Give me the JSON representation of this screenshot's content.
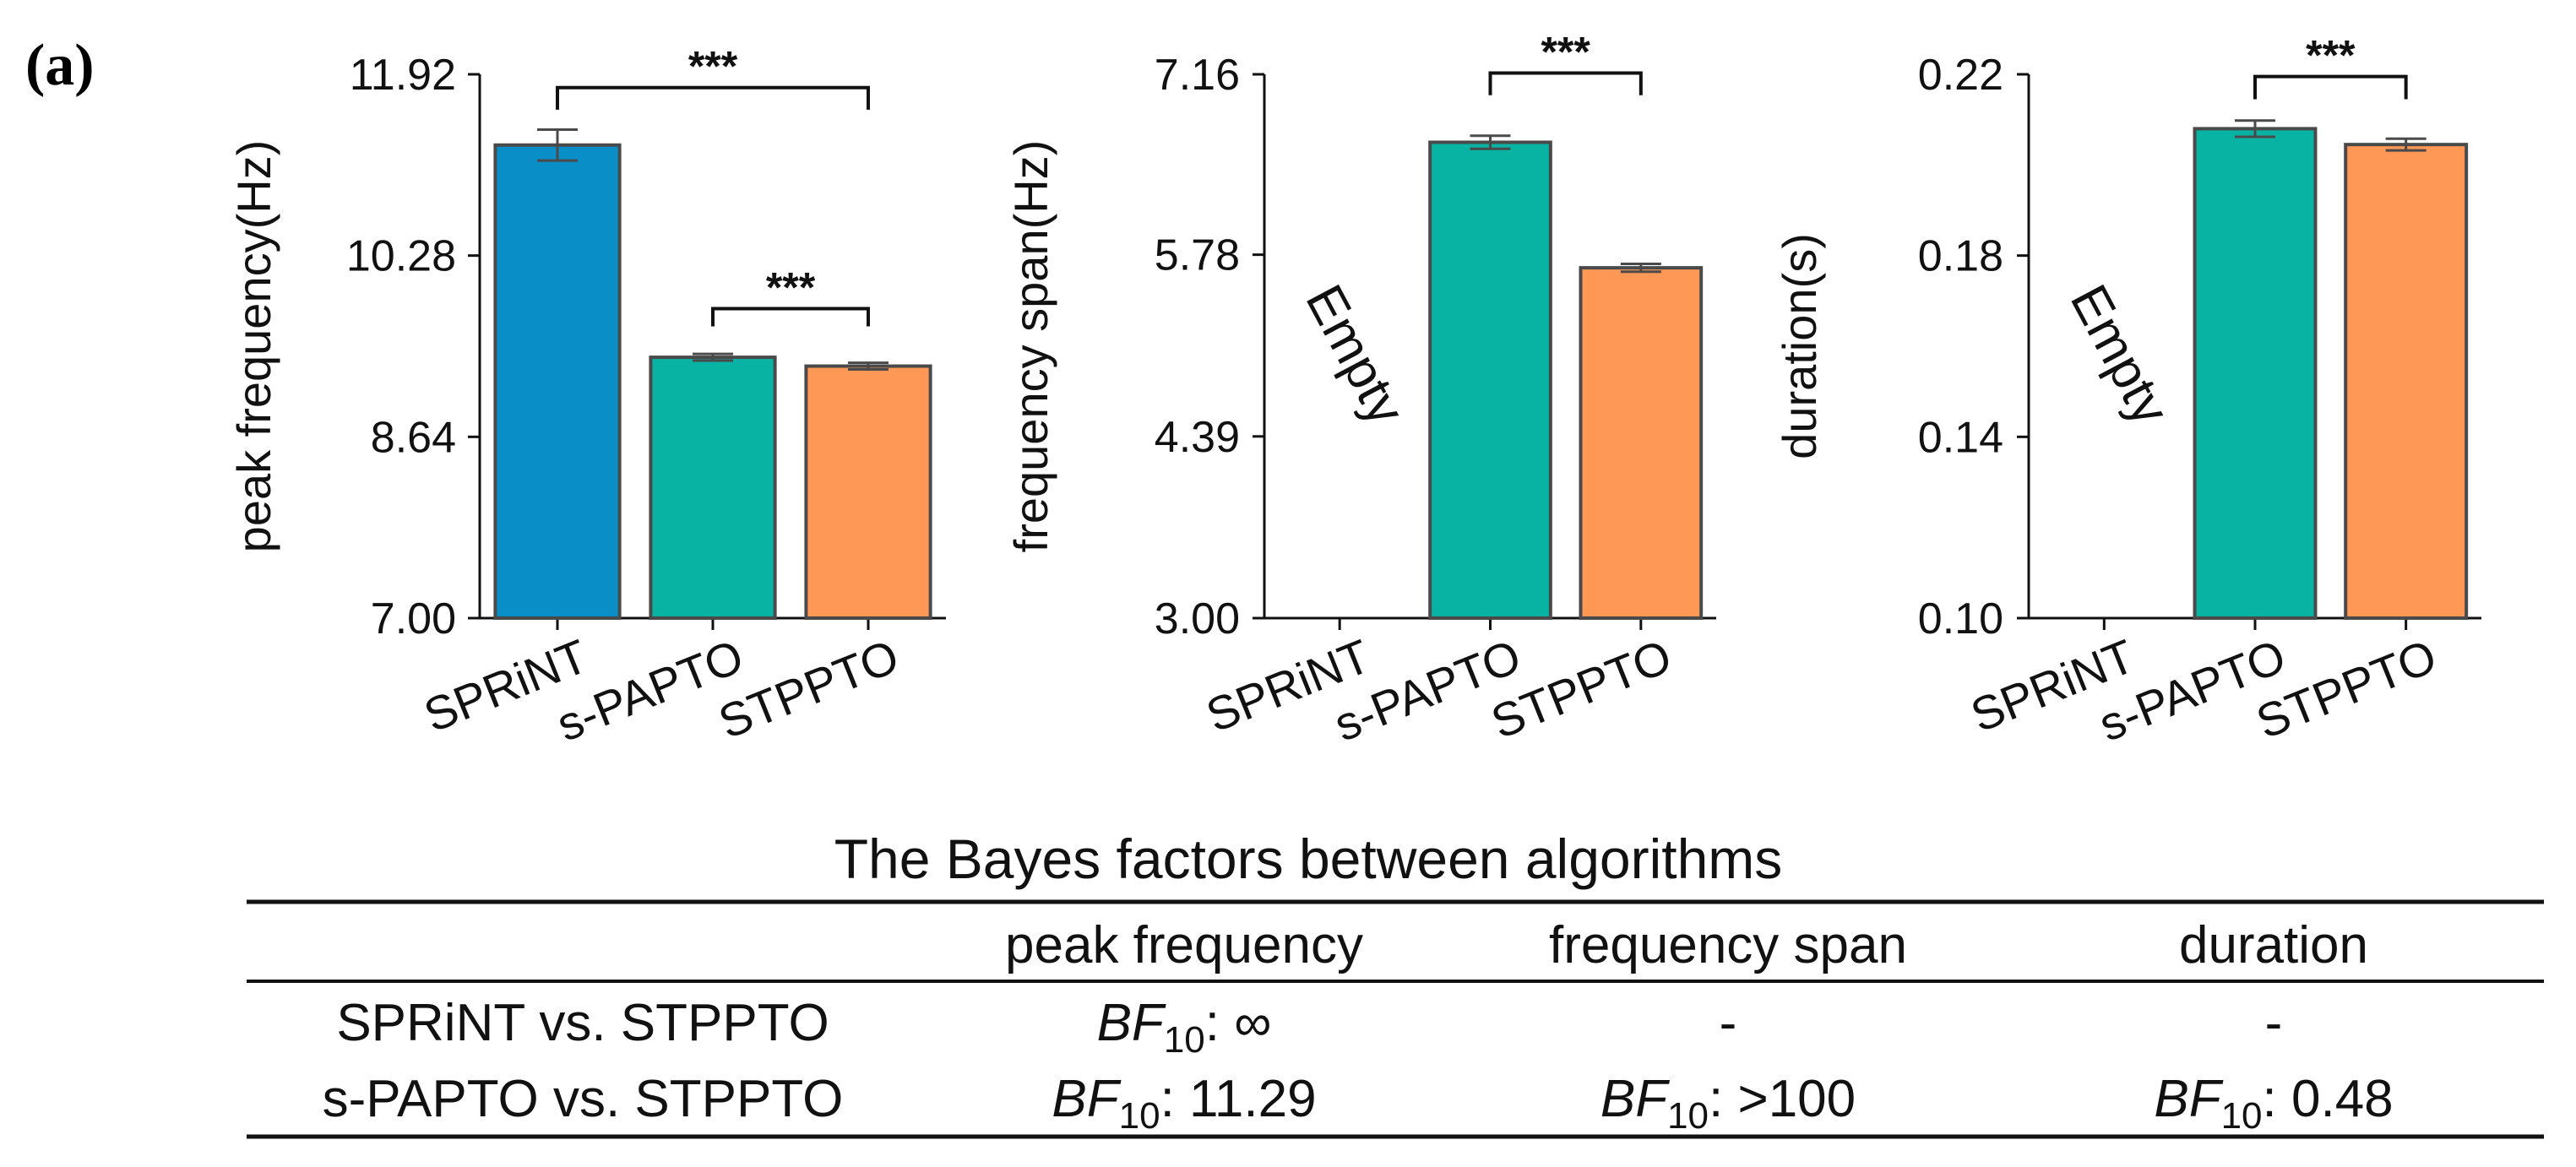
{
  "panel_label": "(a)",
  "chart_data": [
    {
      "type": "bar",
      "categories": [
        "SPRiNT",
        "s-PAPTO",
        "STPPTO"
      ],
      "values": [
        11.28,
        9.36,
        9.28
      ],
      "errors": [
        0.14,
        0.03,
        0.03
      ],
      "colors": [
        "#0a8ec8",
        "#08b3a4",
        "#fe9856"
      ],
      "ylabel": "peak frequency(Hz)",
      "ylim": [
        7.0,
        11.92
      ],
      "ticks": [
        "7.00",
        "8.64",
        "10.28",
        "11.92"
      ],
      "empty_label": "",
      "significance": [
        {
          "from": 0,
          "to": 2,
          "label": "***",
          "y": 11.8,
          "drop": 0.2
        },
        {
          "from": 1,
          "to": 2,
          "label": "***",
          "y": 9.8,
          "drop": 0.16
        }
      ]
    },
    {
      "type": "bar",
      "categories": [
        "SPRiNT",
        "s-PAPTO",
        "STPPTO"
      ],
      "values": [
        null,
        6.64,
        5.68
      ],
      "errors": [
        null,
        0.05,
        0.03
      ],
      "colors": [
        "#0a8ec8",
        "#08b3a4",
        "#fe9856"
      ],
      "ylabel": "frequency span(Hz)",
      "ylim": [
        3.0,
        7.16
      ],
      "ticks": [
        "3.00",
        "4.39",
        "5.78",
        "7.16"
      ],
      "empty_label": "Empty",
      "significance": [
        {
          "from": 1,
          "to": 2,
          "label": "***",
          "y": 7.17,
          "drop": 0.17
        }
      ]
    },
    {
      "type": "bar",
      "categories": [
        "SPRiNT",
        "s-PAPTO",
        "STPPTO"
      ],
      "values": [
        null,
        0.208,
        0.2045
      ],
      "errors": [
        null,
        0.0018,
        0.0013
      ],
      "colors": [
        "#0a8ec8",
        "#08b3a4",
        "#fe9856"
      ],
      "ylabel": "duration(s)",
      "ylim": [
        0.1,
        0.22
      ],
      "ticks": [
        "0.10",
        "0.14",
        "0.18",
        "0.22"
      ],
      "empty_label": "Empty",
      "significance": [
        {
          "from": 1,
          "to": 2,
          "label": "***",
          "y": 0.2195,
          "drop": 0.005
        }
      ]
    }
  ],
  "table": {
    "title": "The Bayes factors between algorithms",
    "headers": [
      "",
      "peak frequency",
      "frequency span",
      "duration"
    ],
    "bf_prefix": "BF",
    "bf_sub": "10",
    "rows": [
      {
        "label": "SPRiNT vs. STPPTO",
        "cells": [
          {
            "bf": true,
            "value": "∞"
          },
          {
            "bf": false,
            "value": "-"
          },
          {
            "bf": false,
            "value": "-"
          }
        ]
      },
      {
        "label": "s-PAPTO vs. STPPTO",
        "cells": [
          {
            "bf": true,
            "value": "11.29"
          },
          {
            "bf": true,
            "value": ">100"
          },
          {
            "bf": true,
            "value": "0.48"
          }
        ]
      }
    ]
  }
}
